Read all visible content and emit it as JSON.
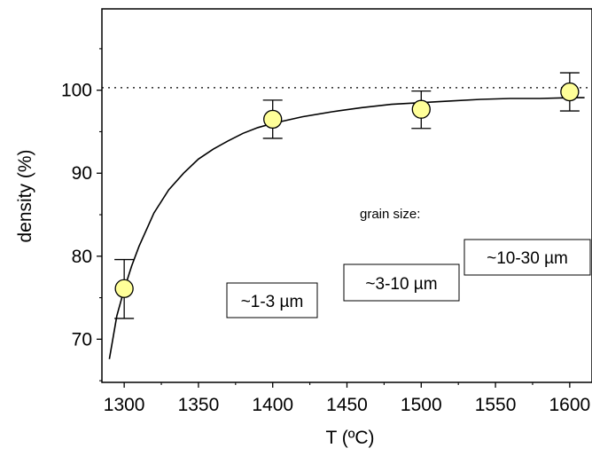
{
  "chart_data": {
    "type": "scatter",
    "title": "",
    "xlabel": "T (ºC)",
    "ylabel": "density (%)",
    "xlim": [
      1285,
      1615
    ],
    "ylim": [
      64.8,
      109.8
    ],
    "x_ticks": [
      1300,
      1350,
      1400,
      1450,
      1500,
      1550,
      1600
    ],
    "x_tick_labels": [
      "1300",
      "1350",
      "1400",
      "1450",
      "1500",
      "1550",
      "1600"
    ],
    "y_ticks": [
      70,
      80,
      90,
      100
    ],
    "y_tick_labels": [
      "70",
      "80",
      "90",
      "100"
    ],
    "grid": false,
    "reference_line": {
      "y": 100.3,
      "style": "dotted"
    },
    "points": [
      {
        "x": 1300,
        "y": 76.1,
        "err_low": 72.5,
        "err_high": 79.6
      },
      {
        "x": 1400,
        "y": 96.5,
        "err_low": 94.2,
        "err_high": 98.8
      },
      {
        "x": 1500,
        "y": 97.7,
        "err_low": 95.4,
        "err_high": 99.9
      },
      {
        "x": 1600,
        "y": 99.8,
        "err_low": 97.5,
        "err_high": 102.1
      }
    ],
    "fit_curve": {
      "x": [
        1290,
        1295,
        1300,
        1305,
        1310,
        1320,
        1330,
        1340,
        1350,
        1360,
        1370,
        1380,
        1390,
        1400,
        1420,
        1440,
        1460,
        1480,
        1500,
        1520,
        1540,
        1560,
        1580,
        1600,
        1610
      ],
      "y": [
        67.6,
        72.8,
        76.0,
        78.8,
        81.2,
        85.2,
        88.0,
        90.0,
        91.7,
        92.9,
        93.9,
        94.8,
        95.5,
        96.0,
        96.8,
        97.4,
        97.9,
        98.3,
        98.5,
        98.7,
        98.9,
        99.0,
        99.0,
        99.1,
        99.1
      ]
    },
    "annotations": {
      "grain_size_label": "grain size:",
      "boxes": [
        {
          "text": "~1-3 µm"
        },
        {
          "text": "~3-10 µm"
        },
        {
          "text": "~10-30 µm"
        }
      ]
    }
  }
}
